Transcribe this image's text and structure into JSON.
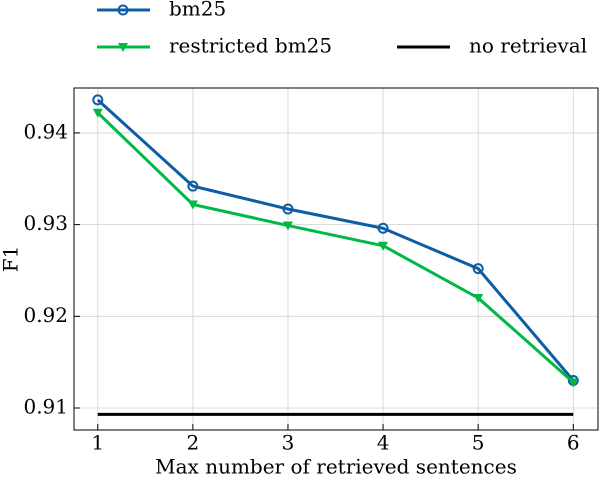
{
  "chart_data": {
    "type": "line",
    "x_label": "Max number of retrieved sentences",
    "y_label": "F1",
    "x": [
      1,
      2,
      3,
      4,
      5,
      6
    ],
    "series": [
      {
        "name": "bm25",
        "color": "#0c5da5",
        "marker": "circle",
        "values": [
          0.9436,
          0.9342,
          0.9317,
          0.9296,
          0.9252,
          0.913
        ]
      },
      {
        "name": "restricted bm25",
        "color": "#00b945",
        "marker": "triangle-down",
        "values": [
          0.9422,
          0.9322,
          0.9299,
          0.9277,
          0.922,
          0.9128
        ]
      },
      {
        "name": "no retrieval",
        "color": "#000000",
        "marker": "none",
        "values": [
          0.9093,
          0.9093,
          0.9093,
          0.9093,
          0.9093,
          0.9093
        ]
      }
    ],
    "xlim": [
      0.75,
      6.26
    ],
    "xticks": [
      1,
      2,
      3,
      4,
      5,
      6
    ],
    "ylim": [
      0.9076,
      0.9449
    ],
    "yticks": [
      0.91,
      0.92,
      0.93,
      0.94
    ],
    "grid": true,
    "legend": "top"
  }
}
